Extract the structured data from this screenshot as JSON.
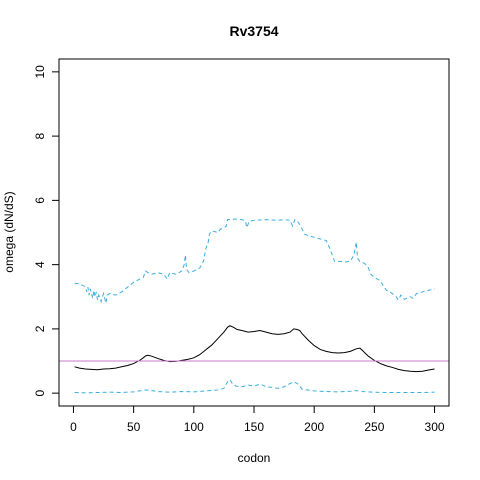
{
  "chart_data": {
    "type": "line",
    "title": "Rv3754",
    "xlabel": "codon",
    "ylabel": "omega (dN/dS)",
    "xlim": [
      -12,
      312
    ],
    "ylim": [
      -0.4,
      10.4
    ],
    "x_ticks": [
      0,
      50,
      100,
      150,
      200,
      250,
      300
    ],
    "y_ticks": [
      0,
      2,
      4,
      6,
      8,
      10
    ],
    "x_tick_labels": [
      "0",
      "50",
      "100",
      "150",
      "200",
      "250",
      "300"
    ],
    "y_tick_labels": [
      "0",
      "2",
      "4",
      "6",
      "8",
      "10"
    ],
    "grid": false,
    "legend": "none",
    "reference_line": {
      "y": 1,
      "color": "#c878c8"
    },
    "series": [
      {
        "style": "solid",
        "color": "#000000",
        "points": [
          [
            1,
            0.82
          ],
          [
            5,
            0.78
          ],
          [
            10,
            0.75
          ],
          [
            15,
            0.74
          ],
          [
            20,
            0.73
          ],
          [
            25,
            0.75
          ],
          [
            30,
            0.76
          ],
          [
            35,
            0.78
          ],
          [
            40,
            0.82
          ],
          [
            45,
            0.86
          ],
          [
            50,
            0.92
          ],
          [
            55,
            1.02
          ],
          [
            58,
            1.1
          ],
          [
            60,
            1.16
          ],
          [
            62,
            1.18
          ],
          [
            65,
            1.15
          ],
          [
            70,
            1.08
          ],
          [
            75,
            1.02
          ],
          [
            80,
            0.98
          ],
          [
            85,
            0.99
          ],
          [
            90,
            1.02
          ],
          [
            95,
            1.05
          ],
          [
            100,
            1.1
          ],
          [
            105,
            1.2
          ],
          [
            110,
            1.35
          ],
          [
            115,
            1.5
          ],
          [
            120,
            1.7
          ],
          [
            125,
            1.9
          ],
          [
            128,
            2.05
          ],
          [
            130,
            2.1
          ],
          [
            133,
            2.05
          ],
          [
            136,
            1.98
          ],
          [
            140,
            1.95
          ],
          [
            145,
            1.9
          ],
          [
            150,
            1.92
          ],
          [
            155,
            1.95
          ],
          [
            160,
            1.9
          ],
          [
            165,
            1.85
          ],
          [
            170,
            1.83
          ],
          [
            175,
            1.85
          ],
          [
            180,
            1.9
          ],
          [
            183,
            2.0
          ],
          [
            186,
            1.98
          ],
          [
            188,
            1.95
          ],
          [
            190,
            1.85
          ],
          [
            195,
            1.65
          ],
          [
            200,
            1.48
          ],
          [
            205,
            1.36
          ],
          [
            210,
            1.3
          ],
          [
            215,
            1.26
          ],
          [
            220,
            1.25
          ],
          [
            225,
            1.26
          ],
          [
            230,
            1.3
          ],
          [
            235,
            1.38
          ],
          [
            238,
            1.4
          ],
          [
            240,
            1.33
          ],
          [
            245,
            1.15
          ],
          [
            250,
            1.02
          ],
          [
            255,
            0.92
          ],
          [
            260,
            0.85
          ],
          [
            265,
            0.8
          ],
          [
            270,
            0.74
          ],
          [
            275,
            0.7
          ],
          [
            280,
            0.68
          ],
          [
            285,
            0.67
          ],
          [
            290,
            0.68
          ],
          [
            295,
            0.72
          ],
          [
            300,
            0.75
          ]
        ]
      },
      {
        "style": "dashed",
        "color": "#3aaee0",
        "points": [
          [
            1,
            3.42
          ],
          [
            5,
            3.4
          ],
          [
            8,
            3.35
          ],
          [
            10,
            3.3
          ],
          [
            11,
            3.15
          ],
          [
            12,
            3.3
          ],
          [
            13,
            3.05
          ],
          [
            14,
            3.25
          ],
          [
            15,
            3.1
          ],
          [
            16,
            2.95
          ],
          [
            17,
            3.2
          ],
          [
            18,
            3.0
          ],
          [
            19,
            3.15
          ],
          [
            20,
            2.9
          ],
          [
            21,
            3.05
          ],
          [
            23,
            2.85
          ],
          [
            25,
            3.1
          ],
          [
            27,
            2.8
          ],
          [
            28,
            3.05
          ],
          [
            30,
            3.1
          ],
          [
            35,
            3.05
          ],
          [
            40,
            3.15
          ],
          [
            45,
            3.3
          ],
          [
            50,
            3.45
          ],
          [
            55,
            3.55
          ],
          [
            58,
            3.6
          ],
          [
            60,
            3.8
          ],
          [
            62,
            3.75
          ],
          [
            65,
            3.7
          ],
          [
            70,
            3.75
          ],
          [
            75,
            3.7
          ],
          [
            78,
            3.55
          ],
          [
            80,
            3.75
          ],
          [
            85,
            3.7
          ],
          [
            90,
            3.8
          ],
          [
            92,
            4.0
          ],
          [
            93,
            4.3
          ],
          [
            94,
            3.85
          ],
          [
            96,
            3.75
          ],
          [
            100,
            3.8
          ],
          [
            105,
            3.9
          ],
          [
            108,
            4.1
          ],
          [
            110,
            4.5
          ],
          [
            112,
            4.7
          ],
          [
            113,
            4.95
          ],
          [
            115,
            5.05
          ],
          [
            120,
            5.0
          ],
          [
            122,
            5.1
          ],
          [
            125,
            5.15
          ],
          [
            127,
            5.2
          ],
          [
            128,
            5.4
          ],
          [
            135,
            5.42
          ],
          [
            140,
            5.4
          ],
          [
            143,
            5.35
          ],
          [
            144,
            5.15
          ],
          [
            146,
            5.35
          ],
          [
            150,
            5.38
          ],
          [
            160,
            5.4
          ],
          [
            170,
            5.38
          ],
          [
            175,
            5.4
          ],
          [
            180,
            5.38
          ],
          [
            182,
            5.2
          ],
          [
            184,
            5.4
          ],
          [
            186,
            5.35
          ],
          [
            188,
            5.25
          ],
          [
            190,
            5.1
          ],
          [
            192,
            4.95
          ],
          [
            195,
            4.9
          ],
          [
            200,
            4.85
          ],
          [
            205,
            4.8
          ],
          [
            210,
            4.75
          ],
          [
            213,
            4.5
          ],
          [
            215,
            4.3
          ],
          [
            217,
            4.1
          ],
          [
            222,
            4.1
          ],
          [
            225,
            4.08
          ],
          [
            230,
            4.1
          ],
          [
            233,
            4.3
          ],
          [
            235,
            4.7
          ],
          [
            236,
            4.2
          ],
          [
            238,
            4.1
          ],
          [
            240,
            4.08
          ],
          [
            243,
            4.0
          ],
          [
            245,
            3.9
          ],
          [
            247,
            3.7
          ],
          [
            250,
            3.6
          ],
          [
            255,
            3.5
          ],
          [
            258,
            3.3
          ],
          [
            260,
            3.2
          ],
          [
            265,
            3.1
          ],
          [
            268,
            3.0
          ],
          [
            270,
            2.9
          ],
          [
            272,
            3.05
          ],
          [
            275,
            2.92
          ],
          [
            280,
            3.0
          ],
          [
            282,
            2.95
          ],
          [
            285,
            3.1
          ],
          [
            290,
            3.15
          ],
          [
            295,
            3.2
          ],
          [
            300,
            3.25
          ]
        ]
      },
      {
        "style": "dashed",
        "color": "#3aaee0",
        "points": [
          [
            1,
            0.02
          ],
          [
            10,
            0.01
          ],
          [
            20,
            0.02
          ],
          [
            30,
            0.03
          ],
          [
            40,
            0.02
          ],
          [
            50,
            0.04
          ],
          [
            55,
            0.07
          ],
          [
            60,
            0.1
          ],
          [
            65,
            0.08
          ],
          [
            70,
            0.05
          ],
          [
            80,
            0.03
          ],
          [
            90,
            0.05
          ],
          [
            100,
            0.04
          ],
          [
            110,
            0.07
          ],
          [
            120,
            0.1
          ],
          [
            125,
            0.15
          ],
          [
            128,
            0.35
          ],
          [
            130,
            0.42
          ],
          [
            132,
            0.3
          ],
          [
            135,
            0.22
          ],
          [
            140,
            0.2
          ],
          [
            145,
            0.25
          ],
          [
            150,
            0.22
          ],
          [
            155,
            0.28
          ],
          [
            160,
            0.2
          ],
          [
            165,
            0.18
          ],
          [
            170,
            0.15
          ],
          [
            175,
            0.2
          ],
          [
            180,
            0.3
          ],
          [
            183,
            0.35
          ],
          [
            186,
            0.3
          ],
          [
            188,
            0.22
          ],
          [
            190,
            0.12
          ],
          [
            200,
            0.07
          ],
          [
            210,
            0.05
          ],
          [
            220,
            0.04
          ],
          [
            230,
            0.06
          ],
          [
            235,
            0.08
          ],
          [
            240,
            0.05
          ],
          [
            250,
            0.03
          ],
          [
            260,
            0.02
          ],
          [
            270,
            0.02
          ],
          [
            280,
            0.02
          ],
          [
            290,
            0.02
          ],
          [
            300,
            0.03
          ]
        ]
      }
    ]
  }
}
